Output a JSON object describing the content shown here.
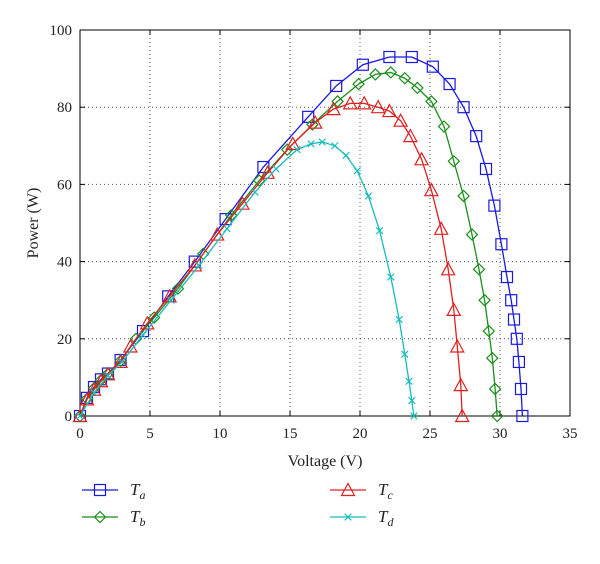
{
  "chart_data": {
    "type": "line",
    "xlabel": "Voltage (V)",
    "ylabel": "Power (W)",
    "xlim": [
      0,
      35
    ],
    "ylim": [
      0,
      100
    ],
    "xticks": [
      0,
      5,
      10,
      15,
      20,
      25,
      30,
      35
    ],
    "yticks": [
      0,
      20,
      40,
      60,
      80,
      100
    ],
    "grid": true,
    "legend_position": "below",
    "series": [
      {
        "name": "T",
        "subscript": "a",
        "color": "#1a1adf",
        "marker": "square",
        "x": [
          0,
          0.5,
          1.0,
          1.5,
          2.0,
          2.9,
          4.5,
          6.3,
          8.2,
          10.4,
          13.1,
          16.3,
          18.3,
          20.2,
          22.1,
          23.7,
          25.2,
          26.4,
          27.4,
          28.3,
          29.0,
          29.6,
          30.1,
          30.5,
          30.8,
          31.0,
          31.2,
          31.35,
          31.5,
          31.6
        ],
        "y": [
          0,
          4.7,
          7.5,
          9.5,
          11,
          14.5,
          22,
          31,
          40,
          51,
          64.5,
          77.5,
          85.5,
          91,
          93,
          93,
          90.5,
          86,
          80,
          72.5,
          64,
          54.5,
          44.5,
          36,
          30,
          25,
          20,
          14,
          7,
          0
        ]
      },
      {
        "name": "T",
        "subscript": "b",
        "color": "#1a8f1a",
        "marker": "diamond",
        "x": [
          0,
          0.5,
          1.0,
          1.5,
          2.0,
          2.9,
          4.0,
          5.3,
          7.0,
          8.8,
          10.8,
          12.8,
          14.8,
          16.6,
          18.4,
          19.9,
          21.1,
          22.2,
          23.2,
          24.1,
          25.1,
          26.0,
          26.7,
          27.4,
          28.0,
          28.5,
          28.9,
          29.2,
          29.45,
          29.65,
          29.8
        ],
        "y": [
          0,
          4.5,
          7.2,
          9.3,
          11,
          14.3,
          20,
          25.5,
          33,
          42,
          52,
          61,
          69,
          75.5,
          81.5,
          86,
          88.5,
          89,
          87.5,
          85,
          81.5,
          75,
          66,
          57,
          47,
          38,
          30,
          22,
          15,
          7,
          0
        ]
      },
      {
        "name": "T",
        "subscript": "c",
        "color": "#e02020",
        "marker": "triangle",
        "x": [
          0,
          0.5,
          1.0,
          1.5,
          2.0,
          2.9,
          3.6,
          4.8,
          6.4,
          8.2,
          9.8,
          11.6,
          13.4,
          15.2,
          16.8,
          18.1,
          19.3,
          20.3,
          21.3,
          22.1,
          22.9,
          23.6,
          24.4,
          25.1,
          25.8,
          26.3,
          26.7,
          26.95,
          27.2,
          27.3
        ],
        "y": [
          0,
          4.3,
          6.8,
          9,
          10.8,
          14,
          18,
          24,
          31,
          39,
          47,
          55,
          63,
          70.5,
          76,
          79.5,
          81,
          81,
          80,
          79,
          76.5,
          72.5,
          66.5,
          58.5,
          48.5,
          38,
          27.5,
          18,
          8,
          0
        ]
      },
      {
        "name": "T",
        "subscript": "d",
        "color": "#19bcbc",
        "marker": "x",
        "x": [
          0,
          1,
          2,
          3,
          4.5,
          6.5,
          8.5,
          10.5,
          12.5,
          14,
          15.5,
          16.5,
          17.3,
          18.2,
          19.0,
          19.8,
          20.6,
          21.4,
          22.2,
          22.8,
          23.2,
          23.5,
          23.7,
          23.85
        ],
        "y": [
          0,
          6,
          10.5,
          14,
          21,
          30,
          39,
          48.5,
          58,
          64,
          69,
          70.5,
          71,
          70,
          67.5,
          63.5,
          57,
          48,
          36,
          25,
          16,
          9,
          4,
          0
        ]
      }
    ]
  }
}
